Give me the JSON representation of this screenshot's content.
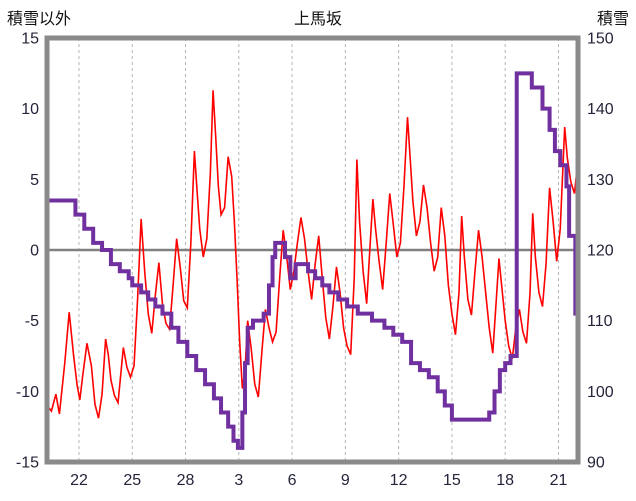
{
  "header": {
    "left": "積雪以外",
    "center": "上馬坂",
    "right": "積雪"
  },
  "chart_data": {
    "type": "line",
    "title": "上馬坂",
    "legend": "none",
    "grid": "vertical-dashed",
    "left_axis": {
      "title": "積雪以外",
      "min": -15,
      "max": 15,
      "ticks": [
        15,
        10,
        5,
        0,
        -5,
        -10,
        -15
      ]
    },
    "right_axis": {
      "title": "積雪",
      "min": 90,
      "max": 150,
      "ticks": [
        150,
        140,
        130,
        120,
        110,
        100,
        90
      ]
    },
    "x_axis": {
      "min": 20.2,
      "max": 50.1,
      "tick_values": [
        22,
        25,
        28,
        31,
        34,
        37,
        40,
        43,
        46,
        49
      ],
      "tick_labels": [
        "22",
        "25",
        "28",
        "3",
        "6",
        "9",
        "12",
        "15",
        "18",
        "21"
      ]
    },
    "zero_line_value": 0,
    "colors": {
      "left_series": "#ff0000",
      "right_series": "#7030a0",
      "frame": "#8a8a8a",
      "grid": "#b3b3b3",
      "zero_line": "#808080",
      "tick_text": "#24243a",
      "title_text": "#111111"
    },
    "series": [
      {
        "axis": "left",
        "style": "line",
        "color": "#ff0000",
        "width": 1.6,
        "points": [
          [
            20.2,
            -11.0
          ],
          [
            20.45,
            -11.4
          ],
          [
            20.7,
            -10.2
          ],
          [
            20.9,
            -11.6
          ],
          [
            21.2,
            -8.0
          ],
          [
            21.45,
            -4.4
          ],
          [
            21.7,
            -7.5
          ],
          [
            21.9,
            -9.6
          ],
          [
            22.05,
            -10.6
          ],
          [
            22.2,
            -9.0
          ],
          [
            22.45,
            -6.6
          ],
          [
            22.7,
            -8.2
          ],
          [
            22.9,
            -10.9
          ],
          [
            23.1,
            -11.9
          ],
          [
            23.3,
            -10.2
          ],
          [
            23.5,
            -6.3
          ],
          [
            23.65,
            -7.4
          ],
          [
            23.8,
            -9.2
          ],
          [
            24.0,
            -10.3
          ],
          [
            24.2,
            -10.8
          ],
          [
            24.5,
            -6.9
          ],
          [
            24.7,
            -8.3
          ],
          [
            24.9,
            -9.0
          ],
          [
            25.1,
            -8.2
          ],
          [
            25.3,
            -3.5
          ],
          [
            25.5,
            2.2
          ],
          [
            25.7,
            -1.5
          ],
          [
            25.9,
            -4.5
          ],
          [
            26.1,
            -5.9
          ],
          [
            26.3,
            -3.2
          ],
          [
            26.5,
            -0.9
          ],
          [
            26.7,
            -3.8
          ],
          [
            26.9,
            -5.2
          ],
          [
            27.1,
            -5.6
          ],
          [
            27.3,
            -2.5
          ],
          [
            27.5,
            0.8
          ],
          [
            27.7,
            -1.2
          ],
          [
            27.9,
            -3.6
          ],
          [
            28.1,
            -4.1
          ],
          [
            28.3,
            0.5
          ],
          [
            28.5,
            7.0
          ],
          [
            28.65,
            4.2
          ],
          [
            28.8,
            1.5
          ],
          [
            29.0,
            -0.5
          ],
          [
            29.2,
            0.8
          ],
          [
            29.4,
            5.5
          ],
          [
            29.55,
            11.3
          ],
          [
            29.7,
            8.0
          ],
          [
            29.85,
            4.5
          ],
          [
            30.0,
            2.5
          ],
          [
            30.2,
            3.0
          ],
          [
            30.4,
            6.6
          ],
          [
            30.6,
            5.2
          ],
          [
            30.75,
            2.0
          ],
          [
            30.9,
            -2.0
          ],
          [
            31.05,
            -6.5
          ],
          [
            31.2,
            -9.8
          ],
          [
            31.35,
            -8.5
          ],
          [
            31.5,
            -5.0
          ],
          [
            31.7,
            -7.0
          ],
          [
            31.9,
            -9.5
          ],
          [
            32.1,
            -10.4
          ],
          [
            32.3,
            -7.2
          ],
          [
            32.5,
            -4.2
          ],
          [
            32.7,
            -5.5
          ],
          [
            32.9,
            -6.5
          ],
          [
            33.1,
            -5.8
          ],
          [
            33.3,
            -2.0
          ],
          [
            33.5,
            1.4
          ],
          [
            33.7,
            -0.5
          ],
          [
            33.9,
            -2.8
          ],
          [
            34.1,
            -1.5
          ],
          [
            34.3,
            0.5
          ],
          [
            34.5,
            2.3
          ],
          [
            34.7,
            0.8
          ],
          [
            34.9,
            -1.5
          ],
          [
            35.1,
            -3.5
          ],
          [
            35.3,
            -1.0
          ],
          [
            35.5,
            1.0
          ],
          [
            35.7,
            -2.0
          ],
          [
            35.9,
            -4.8
          ],
          [
            36.1,
            -6.3
          ],
          [
            36.3,
            -4.0
          ],
          [
            36.5,
            -1.2
          ],
          [
            36.7,
            -3.0
          ],
          [
            36.9,
            -5.5
          ],
          [
            37.1,
            -6.8
          ],
          [
            37.3,
            -7.4
          ],
          [
            37.5,
            -2.0
          ],
          [
            37.65,
            6.4
          ],
          [
            37.8,
            2.0
          ],
          [
            38.0,
            -1.5
          ],
          [
            38.2,
            -3.8
          ],
          [
            38.4,
            0.5
          ],
          [
            38.55,
            3.6
          ],
          [
            38.7,
            1.5
          ],
          [
            38.9,
            -0.8
          ],
          [
            39.1,
            -2.8
          ],
          [
            39.3,
            0.5
          ],
          [
            39.5,
            4.0
          ],
          [
            39.7,
            1.8
          ],
          [
            39.9,
            -0.5
          ],
          [
            40.1,
            0.5
          ],
          [
            40.3,
            4.5
          ],
          [
            40.5,
            9.4
          ],
          [
            40.65,
            6.5
          ],
          [
            40.8,
            3.5
          ],
          [
            41.0,
            1.0
          ],
          [
            41.2,
            2.0
          ],
          [
            41.4,
            4.6
          ],
          [
            41.6,
            3.0
          ],
          [
            41.8,
            0.5
          ],
          [
            42.0,
            -1.5
          ],
          [
            42.2,
            -0.5
          ],
          [
            42.4,
            3.0
          ],
          [
            42.6,
            1.0
          ],
          [
            42.8,
            -2.5
          ],
          [
            43.0,
            -4.5
          ],
          [
            43.2,
            -6.0
          ],
          [
            43.4,
            -3.0
          ],
          [
            43.55,
            2.4
          ],
          [
            43.7,
            -0.5
          ],
          [
            43.9,
            -3.5
          ],
          [
            44.1,
            -4.6
          ],
          [
            44.3,
            -1.5
          ],
          [
            44.5,
            1.4
          ],
          [
            44.7,
            -0.5
          ],
          [
            44.9,
            -3.0
          ],
          [
            45.1,
            -5.5
          ],
          [
            45.3,
            -7.3
          ],
          [
            45.5,
            -3.5
          ],
          [
            45.65,
            -0.6
          ],
          [
            45.8,
            -2.5
          ],
          [
            46.0,
            -5.0
          ],
          [
            46.2,
            -6.8
          ],
          [
            46.4,
            -7.7
          ],
          [
            46.6,
            -5.5
          ],
          [
            46.8,
            -4.2
          ],
          [
            47.0,
            -5.8
          ],
          [
            47.2,
            -6.6
          ],
          [
            47.4,
            -3.0
          ],
          [
            47.55,
            2.6
          ],
          [
            47.7,
            -0.5
          ],
          [
            47.9,
            -3.0
          ],
          [
            48.1,
            -4.0
          ],
          [
            48.3,
            -1.0
          ],
          [
            48.5,
            4.4
          ],
          [
            48.7,
            2.0
          ],
          [
            48.9,
            -0.8
          ],
          [
            49.1,
            1.5
          ],
          [
            49.35,
            8.7
          ],
          [
            49.5,
            6.5
          ],
          [
            49.7,
            4.8
          ],
          [
            49.9,
            4.0
          ],
          [
            50.05,
            5.8
          ],
          [
            50.1,
            5.6
          ]
        ]
      },
      {
        "axis": "right",
        "style": "step",
        "color": "#7030a0",
        "width": 4,
        "points": [
          [
            20.2,
            127
          ],
          [
            21.8,
            125
          ],
          [
            22.3,
            123
          ],
          [
            22.8,
            121
          ],
          [
            23.3,
            120
          ],
          [
            23.8,
            118
          ],
          [
            24.3,
            117
          ],
          [
            24.8,
            116
          ],
          [
            25.0,
            115
          ],
          [
            25.5,
            114
          ],
          [
            25.9,
            113
          ],
          [
            26.3,
            112
          ],
          [
            26.7,
            111
          ],
          [
            27.2,
            109
          ],
          [
            27.6,
            107
          ],
          [
            28.1,
            105
          ],
          [
            28.6,
            103
          ],
          [
            29.1,
            101
          ],
          [
            29.6,
            99
          ],
          [
            30.0,
            97
          ],
          [
            30.4,
            95
          ],
          [
            30.7,
            93
          ],
          [
            30.95,
            92
          ],
          [
            31.2,
            97
          ],
          [
            31.35,
            104
          ],
          [
            31.5,
            109
          ],
          [
            31.8,
            110
          ],
          [
            32.4,
            111
          ],
          [
            32.7,
            115
          ],
          [
            32.9,
            119
          ],
          [
            33.05,
            121
          ],
          [
            33.6,
            119
          ],
          [
            33.9,
            116
          ],
          [
            34.2,
            118
          ],
          [
            34.9,
            117
          ],
          [
            35.3,
            116
          ],
          [
            35.7,
            115
          ],
          [
            36.1,
            114
          ],
          [
            36.6,
            113
          ],
          [
            37.1,
            112
          ],
          [
            37.7,
            111
          ],
          [
            38.5,
            110
          ],
          [
            39.2,
            109
          ],
          [
            39.7,
            108
          ],
          [
            40.2,
            107
          ],
          [
            40.7,
            104
          ],
          [
            41.2,
            103
          ],
          [
            41.7,
            102
          ],
          [
            42.2,
            100
          ],
          [
            42.6,
            98
          ],
          [
            43.0,
            96
          ],
          [
            45.1,
            97
          ],
          [
            45.4,
            100
          ],
          [
            45.7,
            103
          ],
          [
            46.0,
            104
          ],
          [
            46.3,
            105
          ],
          [
            46.65,
            145
          ],
          [
            47.5,
            143
          ],
          [
            48.1,
            140
          ],
          [
            48.5,
            137
          ],
          [
            48.8,
            134
          ],
          [
            49.1,
            132
          ],
          [
            49.45,
            129
          ],
          [
            49.6,
            122
          ],
          [
            49.95,
            111
          ]
        ]
      }
    ]
  }
}
